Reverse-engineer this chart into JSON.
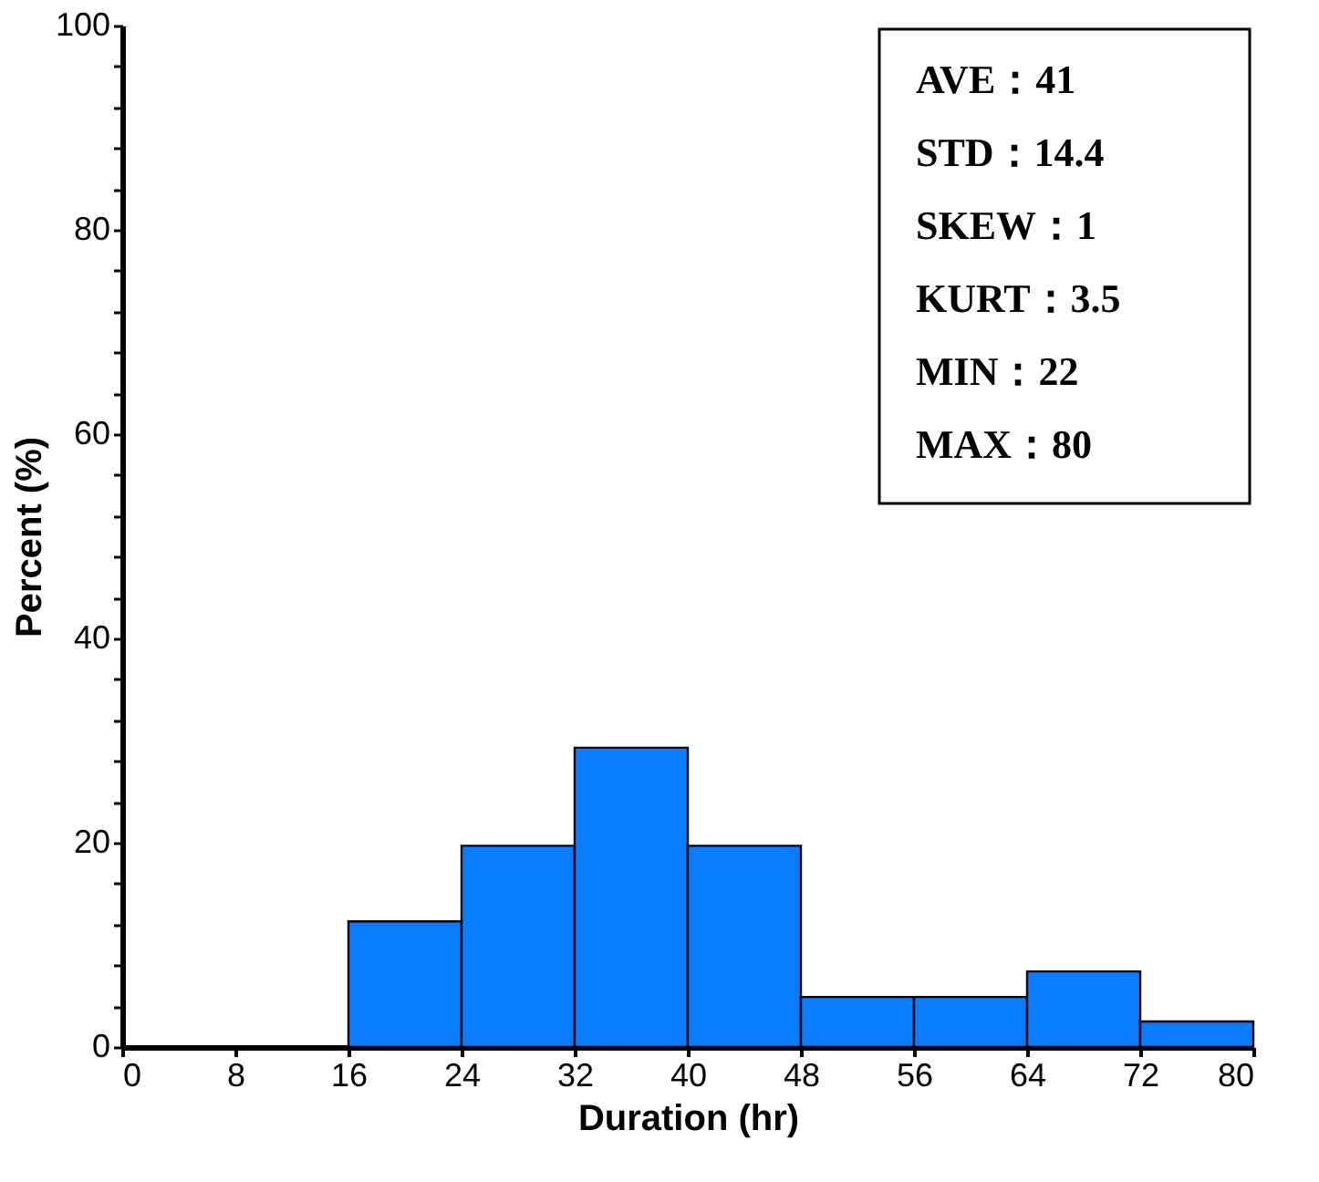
{
  "chart_data": {
    "type": "histogram",
    "xlabel": "Duration (hr)",
    "ylabel": "Percent (%)",
    "bins": [
      0,
      8,
      16,
      24,
      32,
      40,
      48,
      56,
      64,
      72,
      80
    ],
    "values": [
      0,
      0,
      12.3,
      19.7,
      29.3,
      19.7,
      4.9,
      4.9,
      7.4,
      2.5
    ],
    "color": "#0a7cff",
    "xlim": [
      0,
      80
    ],
    "xticks": [
      0,
      8,
      16,
      24,
      32,
      40,
      48,
      56,
      64,
      72,
      80
    ],
    "ylim": [
      0,
      100
    ],
    "yticks": [
      0,
      {
        "value": 4,
        "label": null
      },
      {
        "value": 8,
        "label": null
      },
      {
        "value": 12,
        "label": null
      },
      {
        "value": 16,
        "label": null
      },
      20,
      {
        "value": 24,
        "label": null
      },
      {
        "value": 28,
        "label": null
      },
      {
        "value": 32,
        "label": null
      },
      {
        "value": 36,
        "label": null
      },
      40,
      {
        "value": 44,
        "label": null
      },
      {
        "value": 48,
        "label": null
      },
      {
        "value": 52,
        "label": null
      },
      {
        "value": 56,
        "label": null
      },
      60,
      {
        "value": 64,
        "label": null
      },
      {
        "value": 68,
        "label": null
      },
      {
        "value": 72,
        "label": null
      },
      {
        "value": 76,
        "label": null
      },
      80,
      {
        "value": 84,
        "label": null
      },
      {
        "value": 88,
        "label": null
      },
      {
        "value": 92,
        "label": null
      },
      {
        "value": 96,
        "label": null
      },
      100
    ],
    "grid": false,
    "annotations": [
      "AVE：41",
      "STD：14.4",
      "SKEW：1",
      "KURT：3.5",
      "MIN：22",
      "MAX：80"
    ]
  }
}
